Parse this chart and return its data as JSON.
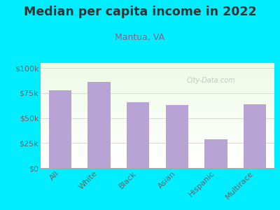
{
  "title": "Median per capita income in 2022",
  "subtitle": "Mantua, VA",
  "categories": [
    "All",
    "White",
    "Black",
    "Asian",
    "Hispanic",
    "Multirace"
  ],
  "values": [
    78000,
    86000,
    66000,
    63000,
    29000,
    64000
  ],
  "bar_color": "#b8a4d4",
  "background_outer": "#00eeff",
  "background_inner_top": "#e8f5e0",
  "background_inner_bottom": "#f8fef8",
  "title_color": "#333333",
  "subtitle_color": "#7a6a8a",
  "tick_color": "#666666",
  "yticks": [
    0,
    25000,
    50000,
    75000,
    100000
  ],
  "ytick_labels": [
    "$0",
    "$25k",
    "$50k",
    "$75k",
    "$100k"
  ],
  "ylim": [
    0,
    105000
  ],
  "watermark": "City-Data.com",
  "title_fontsize": 12.5,
  "subtitle_fontsize": 9,
  "tick_fontsize": 8
}
